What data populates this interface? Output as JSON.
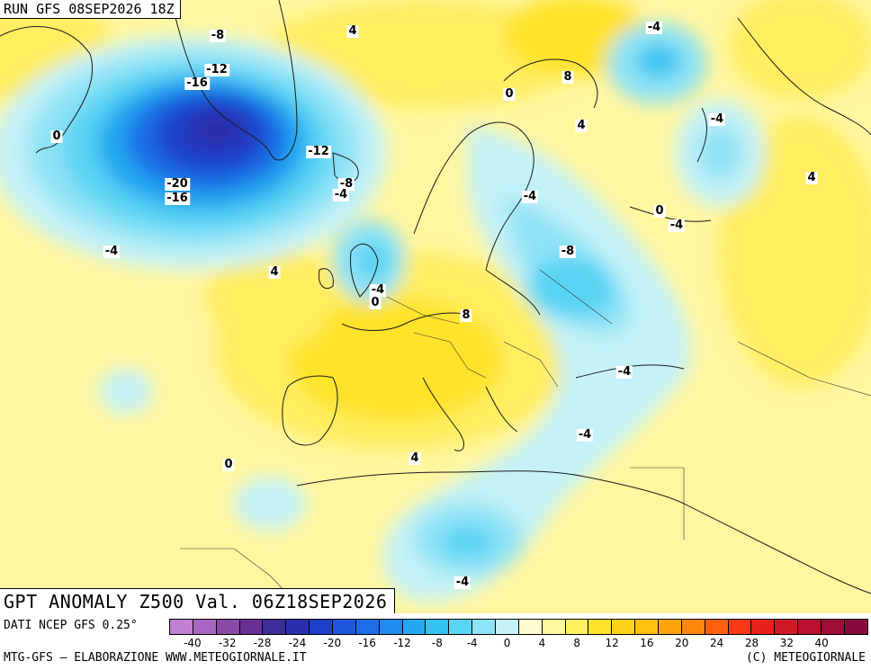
{
  "header": {
    "run_label": "RUN GFS 08SEP2026 18Z"
  },
  "title": {
    "text": "GPT ANOMALY Z500 Val. 06Z18SEP2026"
  },
  "footer": {
    "source": "DATI NCEP GFS 0.25°",
    "credit_left": "MTG-GFS — ELABORAZIONE WWW.METEOGIORNALE.IT",
    "credit_right": "(C) METEOGIORNALE"
  },
  "colorscale": {
    "colors": [
      "#c07fd0",
      "#a866c0",
      "#8a4aa8",
      "#6a2f96",
      "#3a2d9a",
      "#2a2fae",
      "#1f3fc8",
      "#1e56dc",
      "#1c6ee6",
      "#1d8cec",
      "#22a8f0",
      "#33c2f2",
      "#5ad4f4",
      "#8ee2f5",
      "#c4f2f8",
      "#fffbd0",
      "#fff6a0",
      "#ffee60",
      "#ffe32a",
      "#ffd21a",
      "#ffc00f",
      "#ffa50a",
      "#ff860a",
      "#ff600e",
      "#f83a14",
      "#e8201c",
      "#d01826",
      "#b8102e",
      "#a00c36",
      "#880a3c"
    ],
    "labels": [
      "-40",
      "-32",
      "-28",
      "-24",
      "-20",
      "-16",
      "-12",
      "-8",
      "-4",
      "0",
      "4",
      "8",
      "12",
      "16",
      "20",
      "24",
      "28",
      "32",
      "40"
    ]
  },
  "contour_labels": [
    "-8",
    "4",
    "-4",
    "-12",
    "-16",
    "0",
    "8",
    "4",
    "-4",
    "-12",
    "-8",
    "-4",
    "-20",
    "-16",
    "-4",
    "0",
    "-4",
    "0",
    "4",
    "-4",
    "4",
    "-8",
    "-4",
    "0",
    "8",
    "-4",
    "-4",
    "0",
    "4",
    "-4"
  ]
}
